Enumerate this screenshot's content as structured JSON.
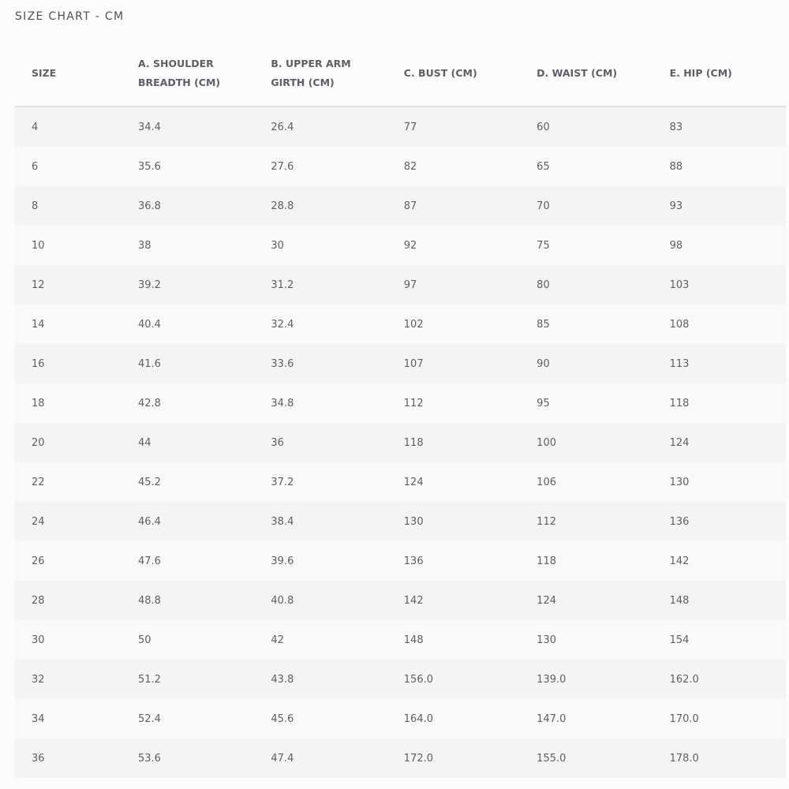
{
  "title": "SIZE CHART - CM",
  "headers": [
    "SIZE",
    "A. SHOULDER BREADTH (CM)",
    "B. UPPER ARM GIRTH (CM)",
    "C. BUST (CM)",
    "D. WAIST (CM)",
    "E. HIP (CM)"
  ],
  "rows": [
    [
      "4",
      "34.4",
      "26.4",
      "77",
      "60",
      "83"
    ],
    [
      "6",
      "35.6",
      "27.6",
      "82",
      "65",
      "88"
    ],
    [
      "8",
      "36.8",
      "28.8",
      "87",
      "70",
      "93"
    ],
    [
      "10",
      "38",
      "30",
      "92",
      "75",
      "98"
    ],
    [
      "12",
      "39.2",
      "31.2",
      "97",
      "80",
      "103"
    ],
    [
      "14",
      "40.4",
      "32.4",
      "102",
      "85",
      "108"
    ],
    [
      "16",
      "41.6",
      "33.6",
      "107",
      "90",
      "113"
    ],
    [
      "18",
      "42.8",
      "34.8",
      "112",
      "95",
      "118"
    ],
    [
      "20",
      "44",
      "36",
      "118",
      "100",
      "124"
    ],
    [
      "22",
      "45.2",
      "37.2",
      "124",
      "106",
      "130"
    ],
    [
      "24",
      "46.4",
      "38.4",
      "130",
      "112",
      "136"
    ],
    [
      "26",
      "47.6",
      "39.6",
      "136",
      "118",
      "142"
    ],
    [
      "28",
      "48.8",
      "40.8",
      "142",
      "124",
      "148"
    ],
    [
      "30",
      "50",
      "42",
      "148",
      "130",
      "154"
    ],
    [
      "32",
      "51.2",
      "43.8",
      "156.0",
      "139.0",
      "162.0"
    ],
    [
      "34",
      "52.4",
      "45.6",
      "164.0",
      "147.0",
      "170.0"
    ],
    [
      "36",
      "53.6",
      "47.4",
      "172.0",
      "155.0",
      "178.0"
    ]
  ]
}
